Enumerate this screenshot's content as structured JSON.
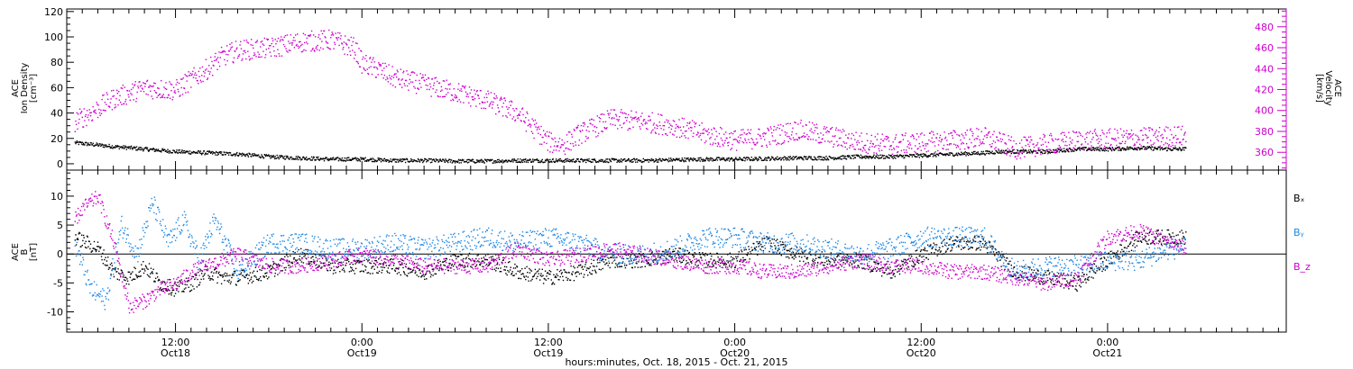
{
  "chart_data": [
    {
      "type": "scatter",
      "panel": "top",
      "left_axis": {
        "label_lines": [
          "ACE",
          "Ion Density",
          "[cm⁻³]"
        ],
        "ylim": [
          -5,
          122
        ],
        "ticks": [
          0,
          20,
          40,
          60,
          80,
          100,
          120
        ],
        "color": "#000000"
      },
      "right_axis": {
        "label_lines": [
          "ACE",
          "Velocity",
          "[km/s]"
        ],
        "ylim": [
          343,
          497
        ],
        "ticks": [
          360,
          380,
          400,
          420,
          440,
          460,
          480
        ],
        "color": "#cc00cc"
      },
      "series": [
        {
          "axis": "left",
          "color": "#000000",
          "x": [
            5.5,
            8,
            10,
            12,
            14,
            16,
            18,
            20,
            22,
            24,
            26,
            28,
            30,
            32,
            34,
            36,
            38,
            40,
            42,
            44,
            46,
            48,
            50,
            52,
            54,
            56,
            58,
            60,
            62,
            64,
            65,
            68,
            70,
            72,
            74,
            76,
            77
          ],
          "y": [
            17,
            14,
            12,
            10,
            9,
            8,
            6,
            5,
            4,
            4,
            3,
            3,
            2.5,
            2.5,
            3,
            3,
            3,
            3,
            3,
            3.5,
            4,
            4,
            4.5,
            5,
            5,
            6,
            6,
            7,
            8,
            9,
            10,
            10,
            12,
            12,
            13,
            12,
            12
          ],
          "noise": 1.5
        },
        {
          "axis": "right",
          "color": "#cc00cc",
          "x": [
            5.5,
            6.5,
            8,
            10,
            12,
            14,
            15,
            16,
            18,
            20,
            22,
            23.5,
            24,
            25,
            26,
            28,
            30,
            32,
            34,
            36,
            37,
            38,
            40,
            42,
            44,
            46,
            48,
            50,
            52,
            54,
            56,
            58,
            60,
            62,
            64,
            65,
            66,
            68,
            70,
            72,
            74,
            76,
            77
          ],
          "y": [
            390,
            398,
            412,
            422,
            420,
            440,
            452,
            458,
            460,
            466,
            468,
            460,
            445,
            440,
            432,
            425,
            418,
            410,
            398,
            370,
            368,
            378,
            392,
            390,
            386,
            378,
            372,
            375,
            382,
            376,
            370,
            368,
            370,
            372,
            375,
            370,
            364,
            368,
            372,
            373,
            374,
            376,
            376
          ],
          "noise": 10
        }
      ]
    },
    {
      "type": "scatter",
      "panel": "bottom",
      "left_axis": {
        "label_lines": [
          "ACE",
          "B",
          "[nT]"
        ],
        "ylim": [
          -13.5,
          14.5
        ],
        "ticks": [
          -10,
          -5,
          0,
          5,
          10
        ],
        "color": "#000000"
      },
      "legend": [
        {
          "text": "Bₓ",
          "color": "#000000"
        },
        {
          "text": "Bᵧ",
          "color": "#1e88e5"
        },
        {
          "text": "B_z",
          "color": "#cc00cc"
        }
      ],
      "zero_line": true,
      "series": [
        {
          "name": "Bₓ",
          "color": "#000000",
          "x": [
            5.5,
            7,
            8,
            9,
            10,
            11,
            12,
            13,
            14,
            15,
            16,
            18,
            20,
            22,
            24,
            26,
            28,
            30,
            32,
            34,
            36,
            38,
            40,
            42,
            44,
            46,
            48,
            50,
            52,
            54,
            56,
            58,
            60,
            62,
            64,
            66,
            68,
            70,
            72,
            74,
            76,
            77
          ],
          "y": [
            3,
            1,
            -3,
            -4,
            -2,
            -5,
            -6,
            -5,
            -3,
            -4,
            -4,
            -3,
            0,
            -2,
            -2,
            -2,
            -3,
            -1,
            -1,
            -3,
            -4,
            -3,
            -1,
            -1,
            0,
            -1,
            -1,
            2,
            0,
            -1,
            -1,
            -3,
            0,
            2,
            2,
            -3,
            -4,
            -5,
            -1,
            3,
            3,
            3
          ],
          "noise": 1.3
        },
        {
          "name": "Bᵧ",
          "color": "#1e88e5",
          "x": [
            5.5,
            6.5,
            7.5,
            8.5,
            9.5,
            10.5,
            11.5,
            12.5,
            13.5,
            14.5,
            16,
            18,
            20,
            22,
            24,
            26,
            28,
            30,
            32,
            34,
            36,
            38,
            40,
            42,
            44,
            46,
            48,
            50,
            52,
            54,
            56,
            58,
            60,
            62,
            64,
            66,
            68,
            70,
            72,
            74,
            76,
            77
          ],
          "y": [
            2,
            -6,
            -8,
            5,
            0,
            9,
            2,
            6,
            -1,
            6,
            -3,
            2,
            2,
            1,
            1,
            2,
            1,
            2,
            3,
            2,
            3,
            2,
            0,
            0,
            1,
            3,
            3,
            2,
            2,
            1,
            0,
            1,
            3,
            3,
            3,
            -3,
            -2,
            -2,
            -1,
            -1,
            1,
            1
          ],
          "noise": 1.8
        },
        {
          "name": "B_z",
          "color": "#cc00cc",
          "x": [
            5.5,
            6,
            7,
            8,
            9,
            10,
            11,
            12,
            13,
            14,
            16,
            18,
            20,
            22,
            24,
            26,
            28,
            30,
            32,
            34,
            36,
            38,
            40,
            42,
            44,
            46,
            48,
            50,
            52,
            54,
            56,
            58,
            60,
            62,
            64,
            66,
            68,
            70,
            72,
            74,
            76,
            77
          ],
          "y": [
            6,
            8,
            10,
            2,
            -9,
            -8,
            -6,
            -5,
            -3,
            -2,
            0,
            -2,
            -2,
            -1,
            0,
            -1,
            -2,
            -2,
            -2,
            1,
            -1,
            0,
            1,
            0,
            -1,
            -2,
            -2,
            -3,
            -3,
            -2,
            -1,
            -2,
            -2,
            -3,
            -3,
            -4,
            -5,
            -4,
            3,
            4,
            2,
            1
          ],
          "noise": 1.3
        }
      ]
    }
  ],
  "x_axis": {
    "range_hours": [
      5,
      83.5
    ],
    "ticks": [
      {
        "h": 12,
        "time": "12:00",
        "date": "Oct18"
      },
      {
        "h": 24,
        "time": "0:00",
        "date": "Oct19"
      },
      {
        "h": 36,
        "time": "12:00",
        "date": "Oct19"
      },
      {
        "h": 48,
        "time": "0:00",
        "date": "Oct20"
      },
      {
        "h": 60,
        "time": "12:00",
        "date": "Oct20"
      },
      {
        "h": 72,
        "time": "0:00",
        "date": "Oct21"
      }
    ],
    "label": "hours:minutes, Oct. 18, 2015 - Oct. 21, 2015"
  }
}
